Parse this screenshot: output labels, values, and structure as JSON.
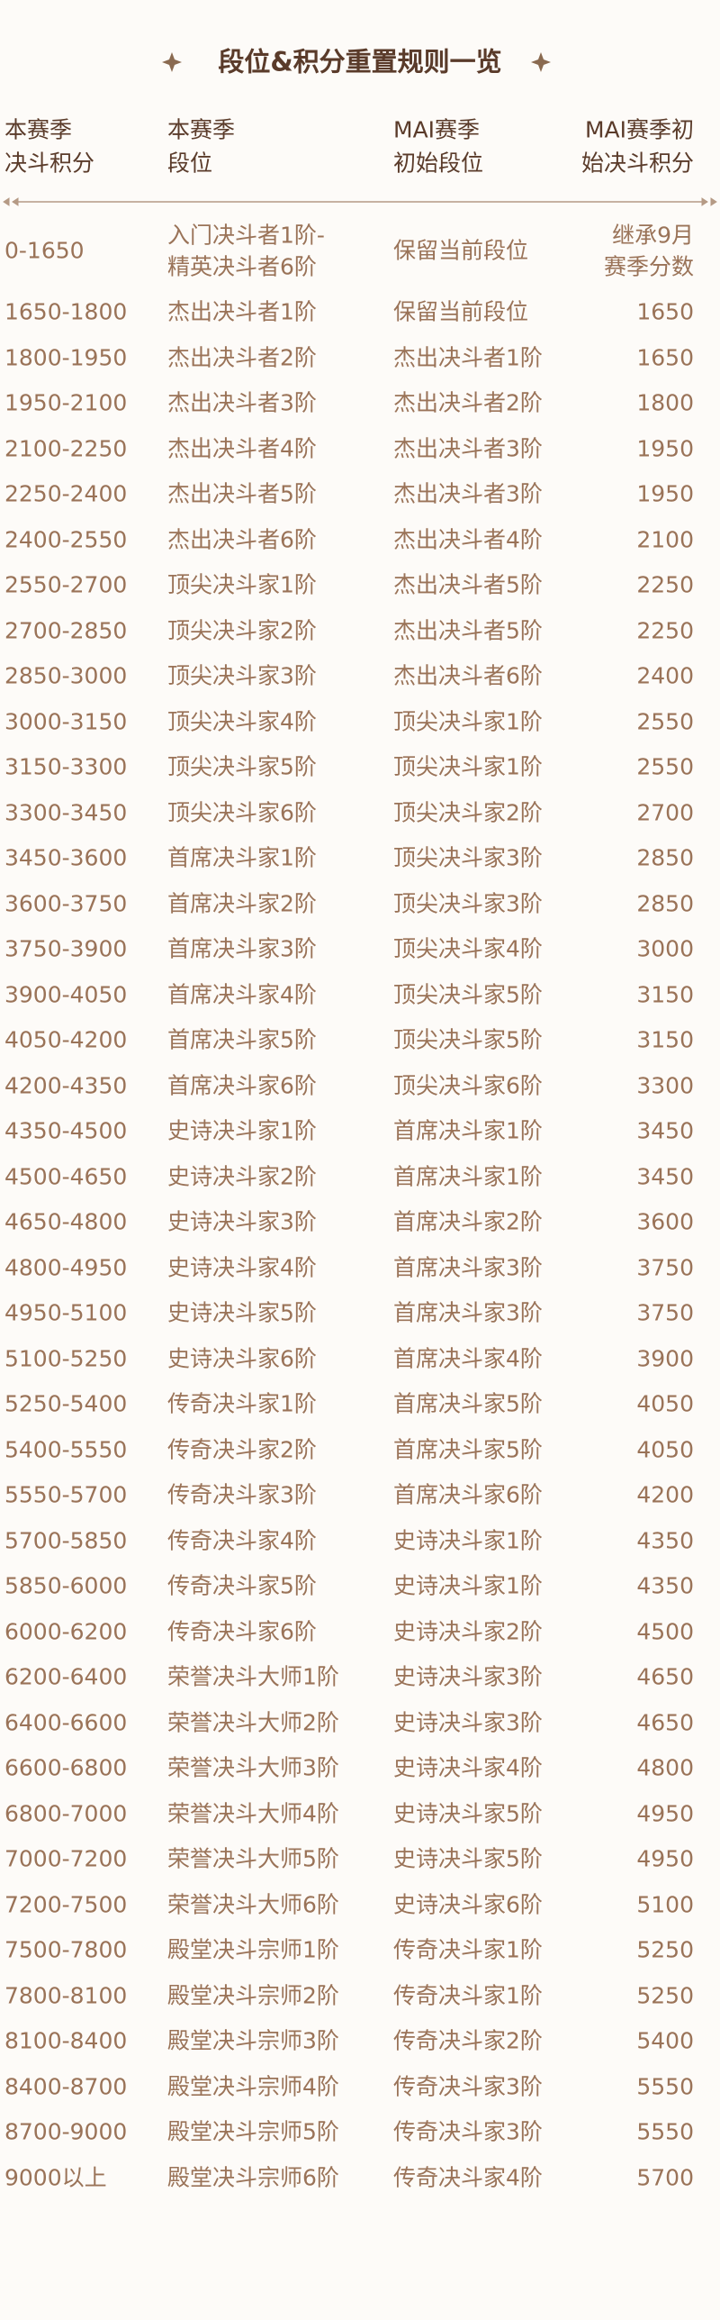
{
  "title": "段位&积分重置规则一览",
  "table": {
    "headers": [
      [
        "本赛季",
        "决斗积分"
      ],
      [
        "本赛季",
        "段位"
      ],
      [
        "MAI赛季",
        "初始段位"
      ],
      [
        "MAI赛季初",
        "始决斗积分"
      ]
    ],
    "rows": [
      [
        "0-1650",
        [
          "入门决斗者1阶-",
          "精英决斗者6阶"
        ],
        "保留当前段位",
        [
          "继承9月",
          "赛季分数"
        ]
      ],
      [
        "1650-1800",
        "杰出决斗者1阶",
        "保留当前段位",
        1650
      ],
      [
        "1800-1950",
        "杰出决斗者2阶",
        "杰出决斗者1阶",
        1650
      ],
      [
        "1950-2100",
        "杰出决斗者3阶",
        "杰出决斗者2阶",
        1800
      ],
      [
        "2100-2250",
        "杰出决斗者4阶",
        "杰出决斗者3阶",
        1950
      ],
      [
        "2250-2400",
        "杰出决斗者5阶",
        "杰出决斗者3阶",
        1950
      ],
      [
        "2400-2550",
        "杰出决斗者6阶",
        "杰出决斗者4阶",
        2100
      ],
      [
        "2550-2700",
        "顶尖决斗家1阶",
        "杰出决斗者5阶",
        2250
      ],
      [
        "2700-2850",
        "顶尖决斗家2阶",
        "杰出决斗者5阶",
        2250
      ],
      [
        "2850-3000",
        "顶尖决斗家3阶",
        "杰出决斗者6阶",
        2400
      ],
      [
        "3000-3150",
        "顶尖决斗家4阶",
        "顶尖决斗家1阶",
        2550
      ],
      [
        "3150-3300",
        "顶尖决斗家5阶",
        "顶尖决斗家1阶",
        2550
      ],
      [
        "3300-3450",
        "顶尖决斗家6阶",
        "顶尖决斗家2阶",
        2700
      ],
      [
        "3450-3600",
        "首席决斗家1阶",
        "顶尖决斗家3阶",
        2850
      ],
      [
        "3600-3750",
        "首席决斗家2阶",
        "顶尖决斗家3阶",
        2850
      ],
      [
        "3750-3900",
        "首席决斗家3阶",
        "顶尖决斗家4阶",
        3000
      ],
      [
        "3900-4050",
        "首席决斗家4阶",
        "顶尖决斗家5阶",
        3150
      ],
      [
        "4050-4200",
        "首席决斗家5阶",
        "顶尖决斗家5阶",
        3150
      ],
      [
        "4200-4350",
        "首席决斗家6阶",
        "顶尖决斗家6阶",
        3300
      ],
      [
        "4350-4500",
        "史诗决斗家1阶",
        "首席决斗家1阶",
        3450
      ],
      [
        "4500-4650",
        "史诗决斗家2阶",
        "首席决斗家1阶",
        3450
      ],
      [
        "4650-4800",
        "史诗决斗家3阶",
        "首席决斗家2阶",
        3600
      ],
      [
        "4800-4950",
        "史诗决斗家4阶",
        "首席决斗家3阶",
        3750
      ],
      [
        "4950-5100",
        "史诗决斗家5阶",
        "首席决斗家3阶",
        3750
      ],
      [
        "5100-5250",
        "史诗决斗家6阶",
        "首席决斗家4阶",
        3900
      ],
      [
        "5250-5400",
        "传奇决斗家1阶",
        "首席决斗家5阶",
        4050
      ],
      [
        "5400-5550",
        "传奇决斗家2阶",
        "首席决斗家5阶",
        4050
      ],
      [
        "5550-5700",
        "传奇决斗家3阶",
        "首席决斗家6阶",
        4200
      ],
      [
        "5700-5850",
        "传奇决斗家4阶",
        "史诗决斗家1阶",
        4350
      ],
      [
        "5850-6000",
        "传奇决斗家5阶",
        "史诗决斗家1阶",
        4350
      ],
      [
        "6000-6200",
        "传奇决斗家6阶",
        "史诗决斗家2阶",
        4500
      ],
      [
        "6200-6400",
        "荣誉决斗大师1阶",
        "史诗决斗家3阶",
        4650
      ],
      [
        "6400-6600",
        "荣誉决斗大师2阶",
        "史诗决斗家3阶",
        4650
      ],
      [
        "6600-6800",
        "荣誉决斗大师3阶",
        "史诗决斗家4阶",
        4800
      ],
      [
        "6800-7000",
        "荣誉决斗大师4阶",
        "史诗决斗家5阶",
        4950
      ],
      [
        "7000-7200",
        "荣誉决斗大师5阶",
        "史诗决斗家5阶",
        4950
      ],
      [
        "7200-7500",
        "荣誉决斗大师6阶",
        "史诗决斗家6阶",
        5100
      ],
      [
        "7500-7800",
        "殿堂决斗宗师1阶",
        "传奇决斗家1阶",
        5250
      ],
      [
        "7800-8100",
        "殿堂决斗宗师2阶",
        "传奇决斗家1阶",
        5250
      ],
      [
        "8100-8400",
        "殿堂决斗宗师3阶",
        "传奇决斗家2阶",
        5400
      ],
      [
        "8400-8700",
        "殿堂决斗宗师4阶",
        "传奇决斗家3阶",
        5550
      ],
      [
        "8700-9000",
        "殿堂决斗宗师5阶",
        "传奇决斗家3阶",
        5550
      ],
      [
        "9000以上",
        "殿堂决斗宗师6阶",
        "传奇决斗家4阶",
        5700
      ]
    ]
  }
}
